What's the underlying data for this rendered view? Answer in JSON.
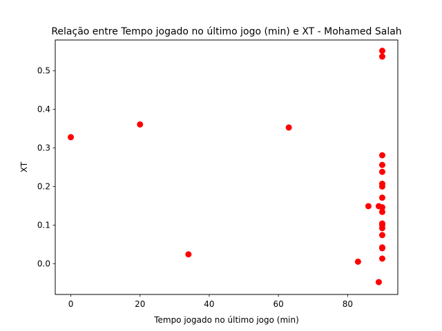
{
  "chart_data": {
    "type": "scatter",
    "title": "Relação entre Tempo jogado no último jogo (min) e XT - Mohamed Salah",
    "xlabel": "Tempo jogado no último jogo (min)",
    "ylabel": "XT",
    "xlim": [
      -4.5,
      94.5
    ],
    "ylim": [
      -0.08,
      0.58
    ],
    "xticks": [
      0,
      20,
      40,
      60,
      80
    ],
    "yticks": [
      0.0,
      0.1,
      0.2,
      0.3,
      0.4,
      0.5
    ],
    "xtick_labels": [
      "0",
      "20",
      "40",
      "60",
      "80"
    ],
    "ytick_labels": [
      "0.0",
      "0.1",
      "0.2",
      "0.3",
      "0.4",
      "0.5"
    ],
    "grid": false,
    "legend": "none",
    "marker_color": "#ff0000",
    "points": [
      {
        "x": 0,
        "y": 0.328
      },
      {
        "x": 20,
        "y": 0.361
      },
      {
        "x": 34,
        "y": 0.024
      },
      {
        "x": 63,
        "y": 0.353
      },
      {
        "x": 83,
        "y": 0.005
      },
      {
        "x": 86,
        "y": 0.149
      },
      {
        "x": 89,
        "y": -0.048
      },
      {
        "x": 89,
        "y": 0.149
      },
      {
        "x": 90,
        "y": 0.552
      },
      {
        "x": 90,
        "y": 0.537
      },
      {
        "x": 90,
        "y": 0.281
      },
      {
        "x": 90,
        "y": 0.256
      },
      {
        "x": 90,
        "y": 0.238
      },
      {
        "x": 90,
        "y": 0.207
      },
      {
        "x": 90,
        "y": 0.2
      },
      {
        "x": 90,
        "y": 0.171
      },
      {
        "x": 90,
        "y": 0.146
      },
      {
        "x": 90,
        "y": 0.134
      },
      {
        "x": 90,
        "y": 0.104
      },
      {
        "x": 90,
        "y": 0.1
      },
      {
        "x": 90,
        "y": 0.092
      },
      {
        "x": 90,
        "y": 0.074
      },
      {
        "x": 90,
        "y": 0.042
      },
      {
        "x": 90,
        "y": 0.04
      },
      {
        "x": 90,
        "y": 0.013
      }
    ]
  }
}
